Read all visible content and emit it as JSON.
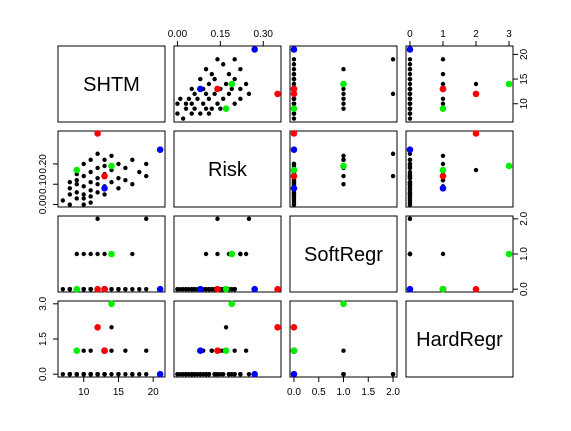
{
  "chart_data": {
    "type": "scatter-matrix",
    "variables": [
      {
        "name": "SHTM",
        "lim": [
          6.3,
          21.7
        ],
        "xticks": [
          10,
          15,
          20
        ],
        "yticks": [
          10,
          15,
          20
        ],
        "values": [
          7,
          8,
          8,
          8,
          9,
          9,
          9,
          9,
          10,
          10,
          10,
          10,
          10,
          10,
          11,
          11,
          11,
          11,
          11,
          12,
          12,
          12,
          12,
          12,
          13,
          13,
          13,
          13,
          14,
          14,
          14,
          15,
          15,
          15,
          16,
          16,
          17,
          17,
          18,
          19,
          19,
          9,
          8,
          11,
          13,
          21,
          13,
          12,
          13,
          14,
          9
        ]
      },
      {
        "name": "Risk",
        "lim": [
          -0.012,
          0.362
        ],
        "xticks": [
          {
            "value": 0,
            "label": "0.00"
          },
          {
            "value": 0.15,
            "label": "0.15"
          },
          {
            "value": 0.3,
            "label": "0.30"
          }
        ],
        "yticks": [
          {
            "value": 0,
            "label": "0.00"
          },
          {
            "value": 0.1,
            "label": "0.10"
          },
          {
            "value": 0.2,
            "label": "0.20"
          }
        ],
        "values": [
          0.02,
          0.05,
          0.0,
          0.08,
          0.03,
          0.1,
          0.06,
          0.12,
          0.0,
          0.05,
          0.09,
          0.14,
          0.2,
          0.03,
          0.07,
          0.11,
          0.16,
          0.22,
          0.04,
          0.06,
          0.1,
          0.18,
          0.25,
          0.13,
          0.09,
          0.15,
          0.22,
          0.05,
          0.11,
          0.17,
          0.24,
          0.08,
          0.13,
          0.2,
          0.12,
          0.18,
          0.1,
          0.22,
          0.16,
          0.14,
          0.2,
          0.15,
          0.11,
          0.01,
          0.19,
          0.27,
          0.08,
          0.35,
          0.14,
          0.19,
          0.17
        ]
      },
      {
        "name": "SoftRegr",
        "lim": [
          -0.08,
          2.08
        ],
        "xticks": [
          {
            "value": 0,
            "label": "0.0"
          },
          {
            "value": 0.5,
            "label": "0.5"
          },
          {
            "value": 1,
            "label": "1.0"
          },
          {
            "value": 1.5,
            "label": "1.5"
          },
          {
            "value": 2,
            "label": "2.0"
          }
        ],
        "yticks": [
          {
            "value": 0,
            "label": "0.0"
          },
          {
            "value": 1,
            "label": "1.0"
          },
          {
            "value": 2,
            "label": "2.0"
          }
        ],
        "values": [
          0,
          0,
          0,
          0,
          0,
          1,
          0,
          0,
          0,
          0,
          0,
          1,
          0,
          0,
          0,
          0,
          0,
          1,
          0,
          0,
          0,
          1,
          2,
          0,
          0,
          0,
          1,
          0,
          0,
          0,
          1,
          0,
          0,
          0,
          0,
          0,
          0,
          1,
          0,
          2,
          0,
          0,
          0,
          0,
          0,
          0,
          0,
          0,
          0,
          1,
          0
        ]
      },
      {
        "name": "HardRegr",
        "lim": [
          -0.12,
          3.12
        ],
        "xticks": [
          0,
          1,
          2,
          3
        ],
        "yticks": [
          {
            "value": 0,
            "label": "0.0"
          },
          {
            "value": 1.5,
            "label": "1.5"
          },
          {
            "value": 3,
            "label": "3.0"
          }
        ],
        "values": [
          0,
          0,
          0,
          0,
          0,
          0,
          0,
          1,
          0,
          0,
          1,
          0,
          0,
          0,
          0,
          0,
          1,
          0,
          0,
          0,
          0,
          0,
          0,
          0,
          0,
          1,
          0,
          0,
          0,
          2,
          1,
          0,
          0,
          0,
          1,
          0,
          0,
          0,
          0,
          0,
          1,
          0,
          0,
          0,
          0,
          0,
          1,
          2,
          1,
          3,
          1
        ]
      }
    ],
    "point_colors": [
      "#000",
      "#000",
      "#000",
      "#000",
      "#000",
      "#000",
      "#000",
      "#000",
      "#000",
      "#000",
      "#000",
      "#000",
      "#000",
      "#000",
      "#000",
      "#000",
      "#000",
      "#000",
      "#000",
      "#000",
      "#000",
      "#000",
      "#000",
      "#000",
      "#000",
      "#000",
      "#000",
      "#000",
      "#000",
      "#000",
      "#000",
      "#000",
      "#000",
      "#000",
      "#000",
      "#000",
      "#000",
      "#000",
      "#000",
      "#000",
      "#000",
      "#000",
      "#000",
      "#000",
      "#000",
      "#0000ff",
      "#0000ff",
      "#ff0000",
      "#ff0000",
      "#00ee00",
      "#00ee00"
    ]
  }
}
